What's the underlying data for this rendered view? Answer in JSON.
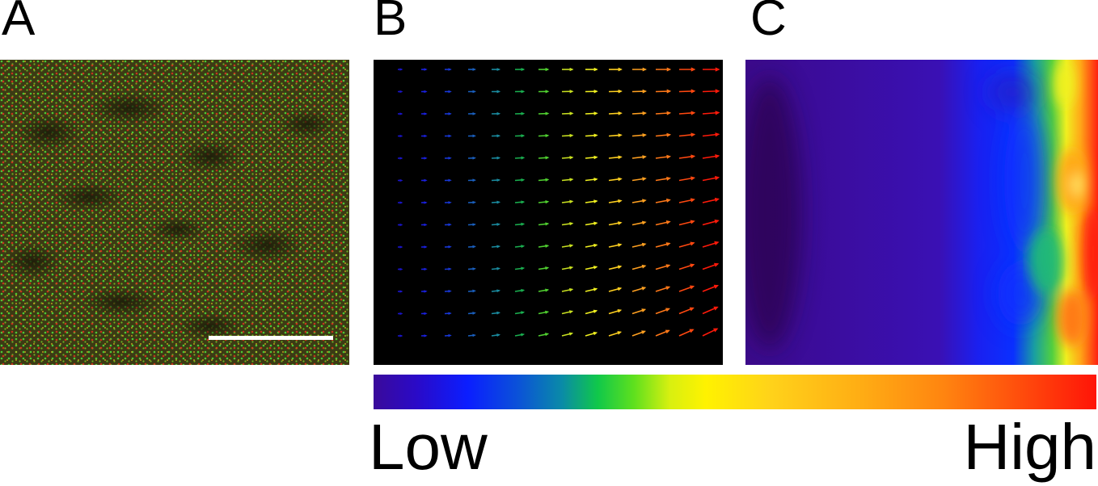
{
  "panels": {
    "a": {
      "letter": "A"
    },
    "b": {
      "letter": "B"
    },
    "c": {
      "letter": "C"
    }
  },
  "colorbar": {
    "low_label": "Low",
    "high_label": "High",
    "colors": [
      "#3a0a9a",
      "#0b1eff",
      "#10c84a",
      "#fff200",
      "#ffae14",
      "#ff1408"
    ]
  },
  "colors": {
    "green_channel": "#3cd23c",
    "red_channel": "#e0321e",
    "scale_bar": "#ffffff"
  }
}
